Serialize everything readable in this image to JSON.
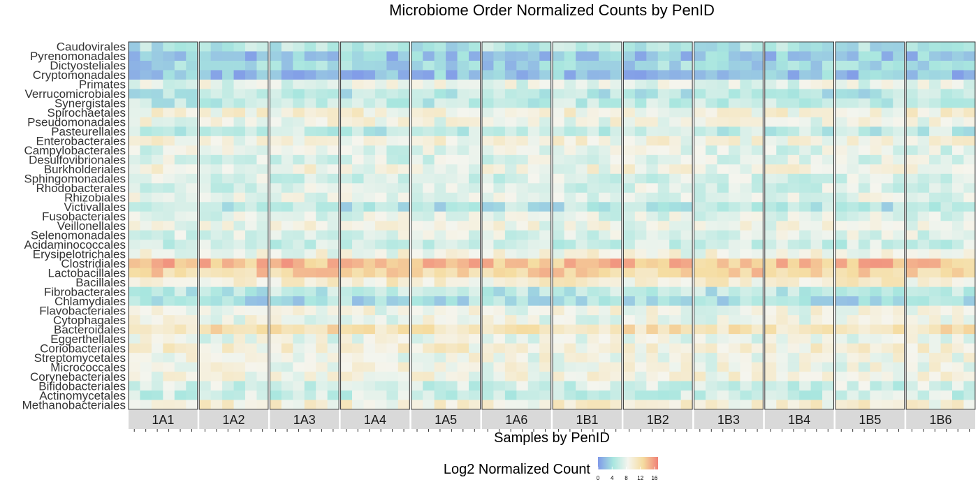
{
  "chart_data": {
    "type": "heatmap",
    "title": "Microbiome Order Normalized Counts by PenID",
    "xlabel": "Samples by PenID",
    "ylabel": "",
    "legend": {
      "title": "Log2 Normalized Count",
      "ticks": [
        0,
        4,
        8,
        12,
        16
      ],
      "range": [
        0,
        17
      ],
      "colors": [
        "#8099e8",
        "#a8e6df",
        "#f5f5ee",
        "#f5dca0",
        "#f08277"
      ],
      "placement": "bottom"
    },
    "panels": [
      "1A1",
      "1A2",
      "1A3",
      "1A4",
      "1A5",
      "1A6",
      "1B1",
      "1B2",
      "1B3",
      "1B4",
      "1B5",
      "1B6"
    ],
    "samples_per_panel": 6,
    "rows": [
      {
        "name": "Caudovirales",
        "base": 4.8
      },
      {
        "name": "Pyrenomonadales",
        "base": 2.5
      },
      {
        "name": "Dictyosteliales",
        "base": 3.4
      },
      {
        "name": "Cryptomonadales",
        "base": 2.2
      },
      {
        "name": "Primates",
        "base": 7.8
      },
      {
        "name": "Verrucomicrobiales",
        "base": 5.0
      },
      {
        "name": "Synergistales",
        "base": 5.5
      },
      {
        "name": "Spirochaetales",
        "base": 9.2
      },
      {
        "name": "Pseudomonadales",
        "base": 8.4
      },
      {
        "name": "Pasteurellales",
        "base": 5.6
      },
      {
        "name": "Enterobacterales",
        "base": 8.8
      },
      {
        "name": "Campylobacterales",
        "base": 7.4
      },
      {
        "name": "Desulfovibrionales",
        "base": 7.2
      },
      {
        "name": "Burkholderiales",
        "base": 8.7
      },
      {
        "name": "Sphingomonadales",
        "base": 7.0
      },
      {
        "name": "Rhodobacterales",
        "base": 7.0
      },
      {
        "name": "Rhizobiales",
        "base": 7.6
      },
      {
        "name": "Victivallales",
        "base": 4.8
      },
      {
        "name": "Fusobacteriales",
        "base": 7.5
      },
      {
        "name": "Veillonellales",
        "base": 8.2
      },
      {
        "name": "Selenomonadales",
        "base": 7.3
      },
      {
        "name": "Acidaminococcales",
        "base": 6.3
      },
      {
        "name": "Erysipelotrichales",
        "base": 8.6
      },
      {
        "name": "Clostridiales",
        "base": 14.2
      },
      {
        "name": "Lactobacillales",
        "base": 12.8
      },
      {
        "name": "Bacillales",
        "base": 9.8
      },
      {
        "name": "Fibrobacterales",
        "base": 5.2
      },
      {
        "name": "Chlamydiales",
        "base": 4.0
      },
      {
        "name": "Flavobacteriales",
        "base": 8.4
      },
      {
        "name": "Cytophagales",
        "base": 8.2
      },
      {
        "name": "Bacteroidales",
        "base": 11.6
      },
      {
        "name": "Eggerthellales",
        "base": 8.0
      },
      {
        "name": "Coriobacteriales",
        "base": 9.5
      },
      {
        "name": "Streptomycetales",
        "base": 8.4
      },
      {
        "name": "Micrococcales",
        "base": 8.4
      },
      {
        "name": "Corynebacteriales",
        "base": 8.7
      },
      {
        "name": "Bifidobacteriales",
        "base": 6.5
      },
      {
        "name": "Actinomycetales",
        "base": 6.2
      },
      {
        "name": "Methanobacteriales",
        "base": 9.4
      }
    ],
    "grid": false
  }
}
